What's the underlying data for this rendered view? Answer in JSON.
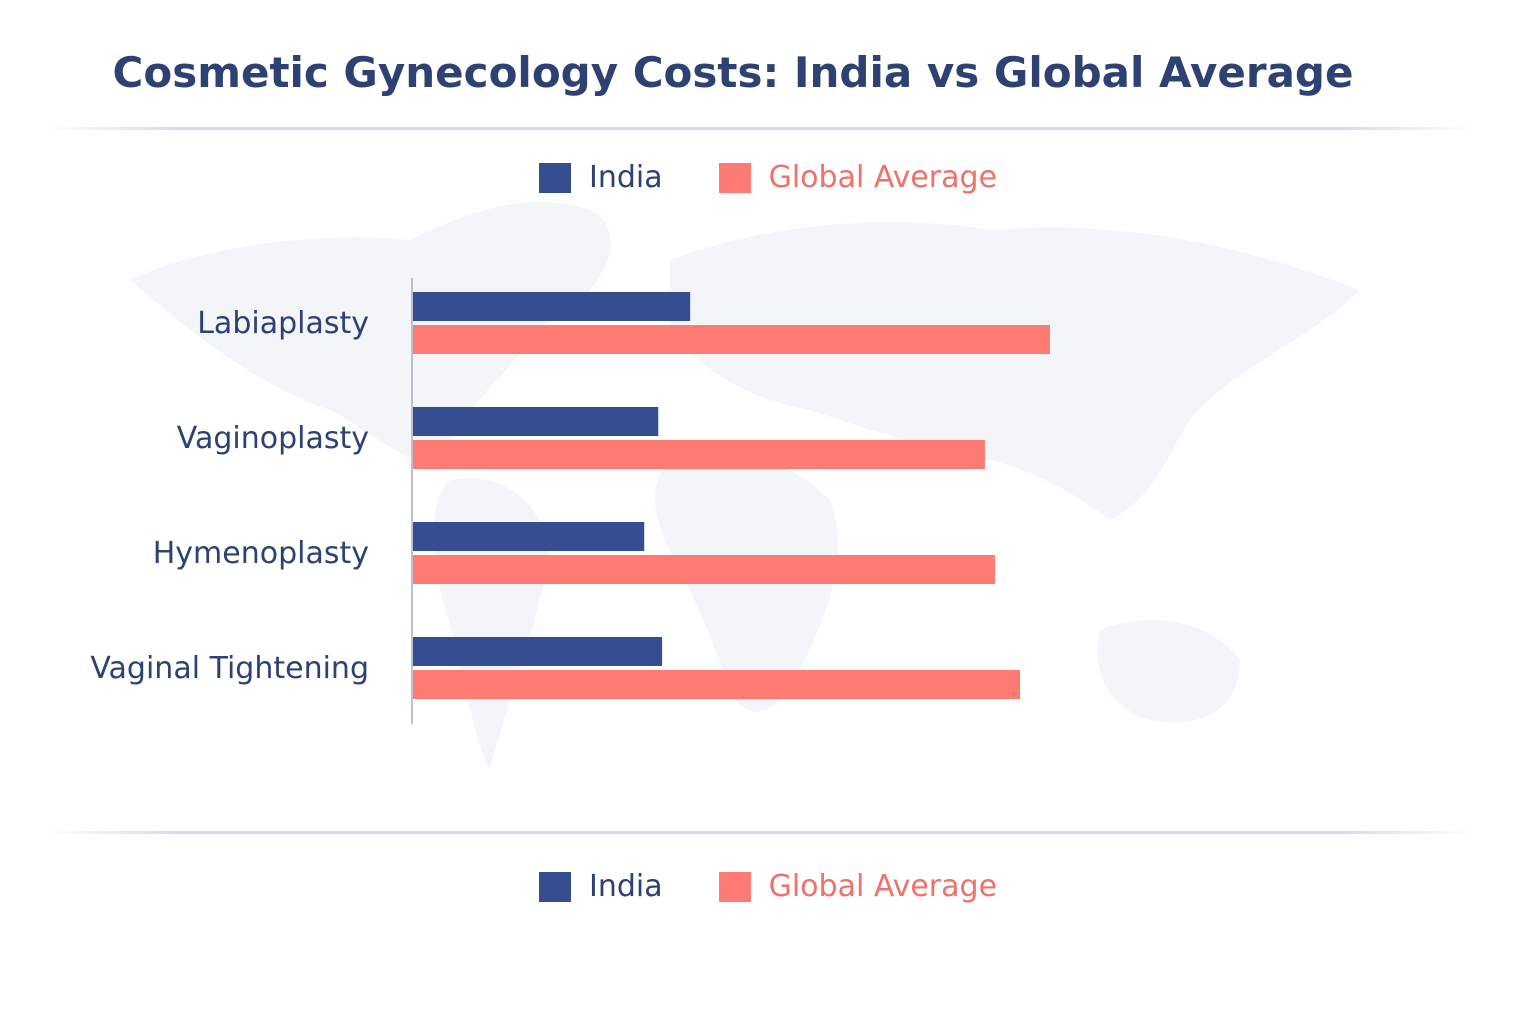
{
  "title": "Cosmetic Gynecology Costs: India vs Global Average",
  "legend_top": [
    {
      "label": "India",
      "color": "#354d91"
    },
    {
      "label": "Global Average",
      "color": "#fd7b73"
    }
  ],
  "legend_bottom": [
    {
      "label": "India",
      "color": "#354d91"
    },
    {
      "label": "Global Average",
      "color": "#fd7b73"
    }
  ],
  "chart_data": {
    "type": "bar",
    "orientation": "horizontal",
    "title": "Cosmetic Gynecology Costs: India vs Global Average",
    "categories": [
      "Labiaplasty",
      "Vaginoplasty",
      "Hymenoplasty",
      "Vaginal Tightening"
    ],
    "series": [
      {
        "name": "India",
        "color": "#354d91",
        "values": [
          43.6,
          38.6,
          36.4,
          39.2
        ]
      },
      {
        "name": "Global Average",
        "color": "#fd7b73",
        "values": [
          100,
          89.8,
          91.4,
          95.3
        ]
      }
    ],
    "xlim": [
      0,
      100
    ],
    "xlabel": "",
    "ylabel": "",
    "grid": false,
    "legend_placement": "top and bottom",
    "value_scale": "relative (no axis ticks shown)"
  }
}
